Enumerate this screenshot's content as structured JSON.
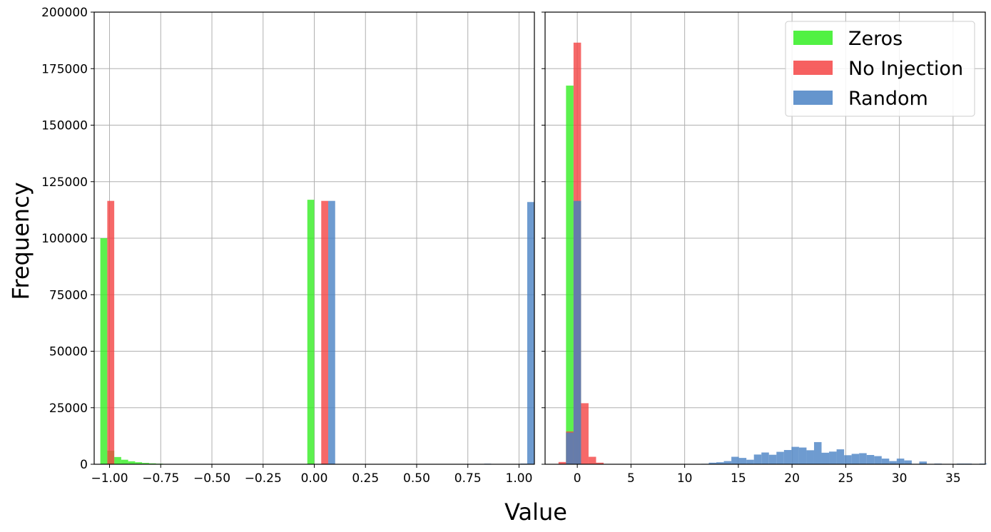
{
  "figure": {
    "xlabel": "Value",
    "ylabel": "Frequency"
  },
  "colors": {
    "Zeros": "#33ee22",
    "No Injection": "#f44444",
    "Random": "#4a82c4",
    "grid": "#b0b0b0"
  },
  "legend": {
    "placement": "upper right of right panel",
    "entries": [
      "Zeros",
      "No Injection",
      "Random"
    ]
  },
  "chart_data": [
    {
      "type": "bar",
      "kind": "histogram",
      "xlim": [
        -1.075,
        1.075
      ],
      "ylim": [
        0,
        200000
      ],
      "grid": true,
      "xticks": [
        -1.0,
        -0.75,
        -0.5,
        -0.25,
        0.0,
        0.25,
        0.5,
        0.75,
        1.0
      ],
      "xtick_labels": [
        "−1.00",
        "−0.75",
        "−0.50",
        "−0.25",
        "0.00",
        "0.25",
        "0.50",
        "0.75",
        "1.00"
      ],
      "yticks": [
        0,
        25000,
        50000,
        75000,
        100000,
        125000,
        150000,
        175000,
        200000
      ],
      "ytick_labels": [
        "0",
        "25000",
        "50000",
        "75000",
        "100000",
        "125000",
        "150000",
        "175000",
        "200000"
      ],
      "series": [
        {
          "name": "Zeros",
          "bin_width": 0.034,
          "bins": [
            [
              -1.045,
              100000
            ],
            [
              -1.011,
              6000
            ],
            [
              -0.977,
              3200
            ],
            [
              -0.943,
              2000
            ],
            [
              -0.909,
              1300
            ],
            [
              -0.875,
              900
            ],
            [
              -0.841,
              600
            ],
            [
              -0.807,
              400
            ],
            [
              -0.773,
              250
            ],
            [
              -0.739,
              150
            ],
            [
              -0.705,
              80
            ],
            [
              -0.034,
              117000
            ]
          ]
        },
        {
          "name": "No Injection",
          "bin_width": 0.034,
          "bins": [
            [
              -1.011,
              116500
            ],
            [
              0.034,
              116500
            ]
          ]
        },
        {
          "name": "Random",
          "bin_width": 0.034,
          "bins": [
            [
              0.068,
              116500
            ],
            [
              0.83,
              250
            ],
            [
              1.006,
              300
            ],
            [
              1.04,
              116000
            ]
          ]
        }
      ]
    },
    {
      "type": "bar",
      "kind": "histogram",
      "xlim": [
        -3,
        38
      ],
      "ylim": [
        0,
        200000
      ],
      "grid": true,
      "xticks": [
        0,
        5,
        10,
        15,
        20,
        25,
        30,
        35
      ],
      "xtick_labels": [
        "0",
        "5",
        "10",
        "15",
        "20",
        "25",
        "30",
        "35"
      ],
      "series": [
        {
          "name": "Zeros",
          "bin_width": 0.7,
          "bins": [
            [
              -1.05,
              167500
            ],
            [
              -0.35,
              116500
            ]
          ]
        },
        {
          "name": "No Injection",
          "bin_width": 0.7,
          "bins": [
            [
              -1.75,
              1000
            ],
            [
              -1.05,
              14500
            ],
            [
              -0.35,
              186500
            ],
            [
              0.35,
              27000
            ],
            [
              1.05,
              3300
            ],
            [
              1.75,
              700
            ]
          ]
        },
        {
          "name": "Random",
          "bin_width": 0.7,
          "bins": [
            [
              -1.05,
              14000
            ],
            [
              -0.35,
              116500
            ],
            [
              8.75,
              150
            ],
            [
              9.45,
              150
            ],
            [
              10.15,
              100
            ],
            [
              11.55,
              200
            ],
            [
              12.25,
              700
            ],
            [
              12.95,
              900
            ],
            [
              13.65,
              1400
            ],
            [
              14.35,
              3300
            ],
            [
              15.05,
              2800
            ],
            [
              15.75,
              2000
            ],
            [
              16.45,
              4300
            ],
            [
              17.15,
              5200
            ],
            [
              17.85,
              4200
            ],
            [
              18.55,
              5500
            ],
            [
              19.25,
              6300
            ],
            [
              19.95,
              7700
            ],
            [
              20.65,
              7400
            ],
            [
              21.35,
              6200
            ],
            [
              22.05,
              9800
            ],
            [
              22.75,
              5100
            ],
            [
              23.45,
              5600
            ],
            [
              24.15,
              6600
            ],
            [
              24.85,
              4000
            ],
            [
              25.55,
              4600
            ],
            [
              26.25,
              4900
            ],
            [
              26.95,
              4100
            ],
            [
              27.65,
              3600
            ],
            [
              28.35,
              2500
            ],
            [
              29.05,
              1400
            ],
            [
              29.75,
              2500
            ],
            [
              30.45,
              1700
            ],
            [
              31.15,
              200
            ],
            [
              31.85,
              1200
            ],
            [
              33.25,
              300
            ],
            [
              35.35,
              300
            ],
            [
              36.05,
              300
            ],
            [
              37.45,
              300
            ]
          ]
        }
      ]
    }
  ]
}
